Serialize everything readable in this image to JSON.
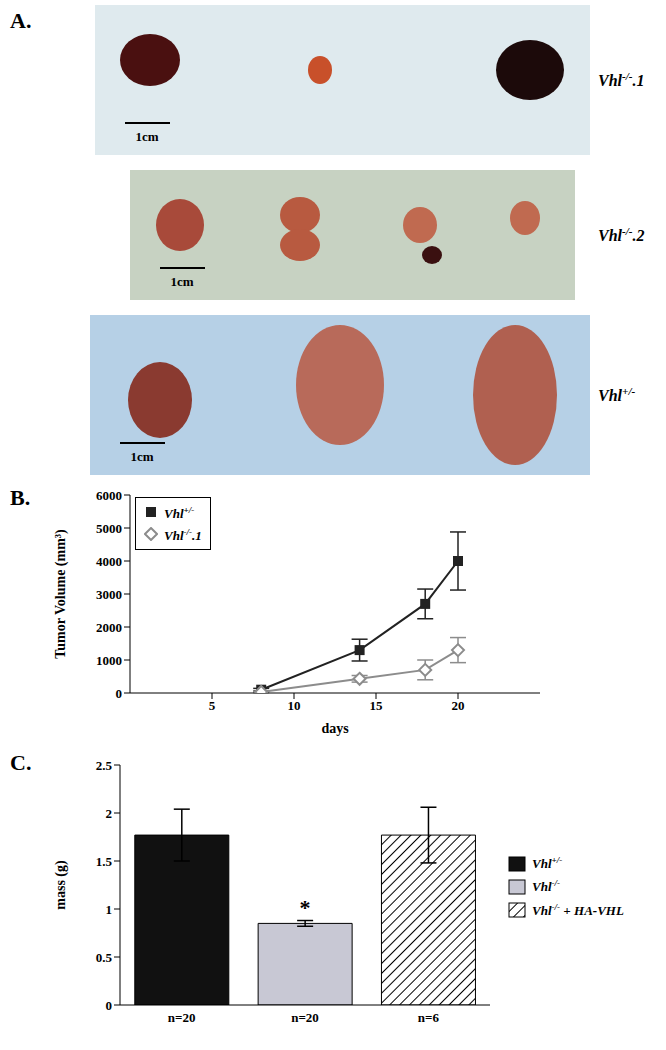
{
  "chart_data": [
    {
      "type": "image",
      "panel": "A.",
      "rows": [
        {
          "label": "Vhl-/-.1",
          "scale_bar": "1cm"
        },
        {
          "label": "Vhl-/-.2",
          "scale_bar": "1cm"
        },
        {
          "label": "Vhl+/-",
          "scale_bar": "1cm"
        }
      ]
    },
    {
      "type": "line",
      "panel": "B.",
      "x_label": "days",
      "y_label": "Tumor Volume (mm³)",
      "x": [
        8,
        14,
        18,
        20
      ],
      "xlim": [
        0,
        25
      ],
      "xticks": [
        5,
        10,
        15,
        20
      ],
      "ylim": [
        0,
        6000
      ],
      "yticks": [
        0,
        1000,
        2000,
        3000,
        4000,
        5000,
        6000
      ],
      "legend": "upper left",
      "series": [
        {
          "name": "Vhl+/-",
          "color": "#222222",
          "marker": "square",
          "values": [
            100,
            1300,
            2700,
            4000
          ],
          "errors": [
            40,
            330,
            450,
            880
          ]
        },
        {
          "name": "Vhl-/-.1",
          "color": "#8c8c8c",
          "marker": "diamond",
          "values": [
            30,
            430,
            700,
            1300
          ],
          "errors": [
            20,
            100,
            300,
            380
          ]
        }
      ]
    },
    {
      "type": "bar",
      "panel": "C.",
      "y_label": "mass (g)",
      "categories": [
        "n=20",
        "n=20",
        "n=6"
      ],
      "ylim": [
        0,
        2.5
      ],
      "yticks": [
        0,
        0.5,
        1,
        1.5,
        2,
        2.5
      ],
      "stacked": true,
      "legend": "right",
      "series": [
        {
          "name": "Vhl+/-",
          "color": "#111111",
          "values": [
            1.77,
            null,
            null
          ],
          "errors": [
            0.27,
            null,
            null
          ]
        },
        {
          "name": "Vhl-/-",
          "color": "#c8c8d4",
          "values": [
            null,
            0.85,
            null
          ],
          "errors": [
            null,
            0.03,
            null
          ]
        },
        {
          "name": "Vhl-/- + HA-VHL",
          "color": "#000000",
          "line_style": "hatched",
          "values": [
            null,
            null,
            1.77
          ],
          "errors": [
            null,
            null,
            0.29
          ]
        }
      ],
      "annotations": [
        {
          "text": "*",
          "x": 1,
          "y": 0.88
        }
      ]
    }
  ]
}
